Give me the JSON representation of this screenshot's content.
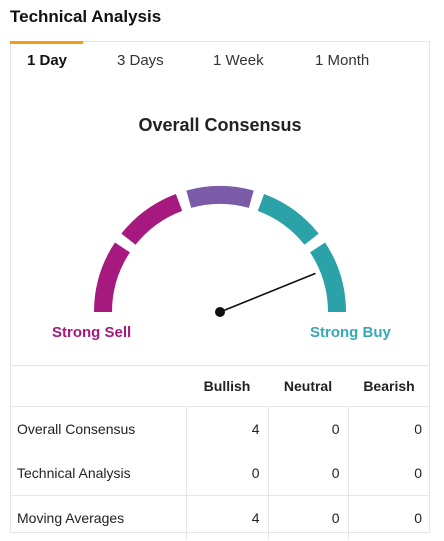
{
  "header": {
    "title": "Technical Analysis"
  },
  "tabs": [
    {
      "label": "1 Day",
      "active": true
    },
    {
      "label": "3 Days",
      "active": false
    },
    {
      "label": "1 Week",
      "active": false
    },
    {
      "label": "1 Month",
      "active": false
    }
  ],
  "gauge": {
    "title": "Overall Consensus",
    "left_label": "Strong Sell",
    "right_label": "Strong Buy",
    "segment_colors": [
      "#a6197e",
      "#a6197e",
      "#7b5ba8",
      "#2aa2a8",
      "#2aa2a8"
    ],
    "needle_level": 0.9,
    "left_label_color": "#a6197e",
    "right_label_color": "#35a9b5",
    "tab_indicator_color": "#f39c12"
  },
  "table": {
    "columns": [
      "",
      "Bullish",
      "Neutral",
      "Bearish"
    ],
    "rows": [
      {
        "label": "Overall Consensus",
        "bullish": "4",
        "neutral": "0",
        "bearish": "0"
      },
      {
        "label": "Technical Analysis",
        "bullish": "0",
        "neutral": "0",
        "bearish": "0"
      },
      {
        "label": "Moving Averages",
        "bullish": "4",
        "neutral": "0",
        "bearish": "0"
      }
    ]
  }
}
